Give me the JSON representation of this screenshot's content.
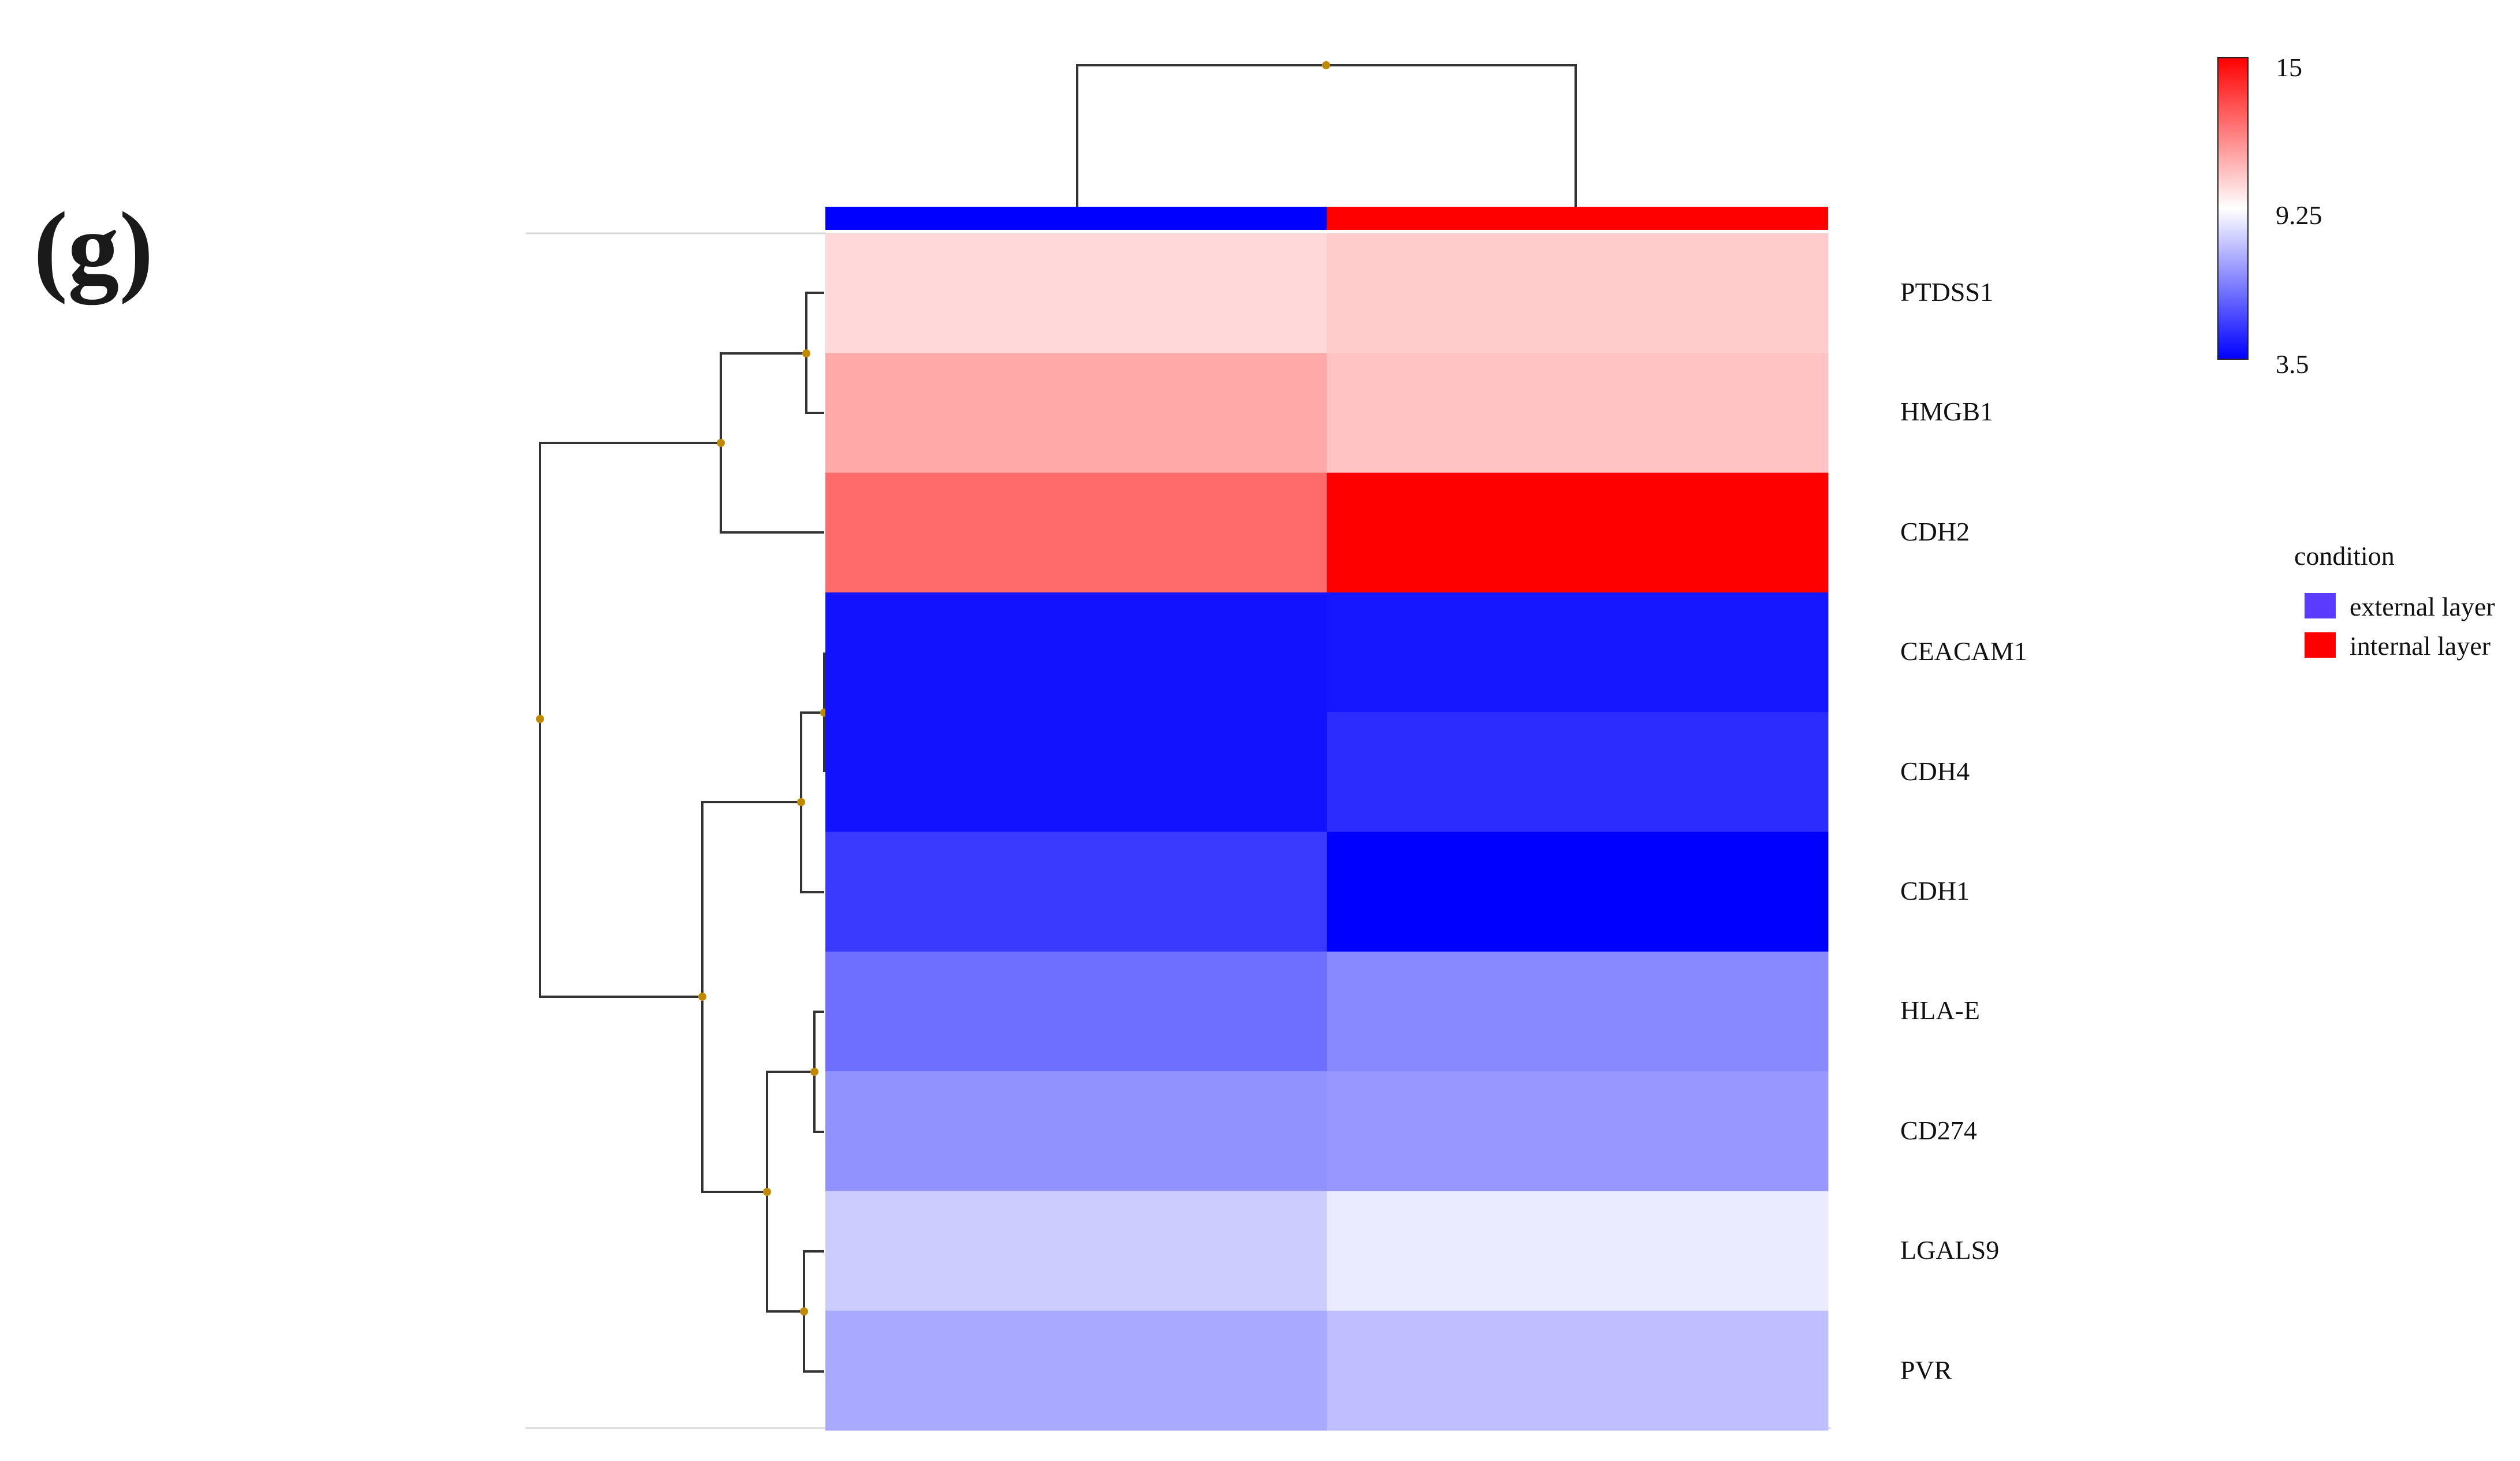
{
  "panel_label": "(g)",
  "chart_data": {
    "type": "heatmap",
    "title": "",
    "rows": [
      "PTDSS1",
      "HMGB1",
      "CDH2",
      "CEACAM1",
      "CDH4",
      "CDH1",
      "HLA-E",
      "CD274",
      "LGALS9",
      "PVR"
    ],
    "columns": [
      {
        "name": "external layer",
        "condition": "external layer"
      },
      {
        "name": "internal layer",
        "condition": "internal layer"
      }
    ],
    "values": [
      [
        10.1,
        10.4
      ],
      [
        11.2,
        10.6
      ],
      [
        12.6,
        15.0
      ],
      [
        3.9,
        4.0
      ],
      [
        3.9,
        4.5
      ],
      [
        4.8,
        3.5
      ],
      [
        6.0,
        6.6
      ],
      [
        6.8,
        6.9
      ],
      [
        8.1,
        8.8
      ],
      [
        7.3,
        7.8
      ]
    ],
    "color_scale": {
      "min": 3.5,
      "mid": 9.25,
      "max": 15,
      "min_color": "#0000ff",
      "mid_color": "#ffffff",
      "max_color": "#ff0000",
      "tick_labels": [
        "15",
        "9.25",
        "3.5"
      ]
    },
    "condition_legend": {
      "title": "condition",
      "entries": [
        {
          "label": "external layer",
          "color": "#5b3cff"
        },
        {
          "label": "internal layer",
          "color": "#ff0000"
        }
      ]
    },
    "condition_bar_colors": [
      "#0000ff",
      "#ff0000"
    ],
    "row_dendrogram_order": [
      "PTDSS1",
      "HMGB1",
      "CDH2",
      "CEACAM1",
      "CDH4",
      "CDH1",
      "HLA-E",
      "CD274",
      "LGALS9",
      "PVR"
    ],
    "colors": {
      "dendrogram_line": "#333333",
      "node_dot": "#c08a00",
      "separator": "#d8d8d8"
    }
  }
}
